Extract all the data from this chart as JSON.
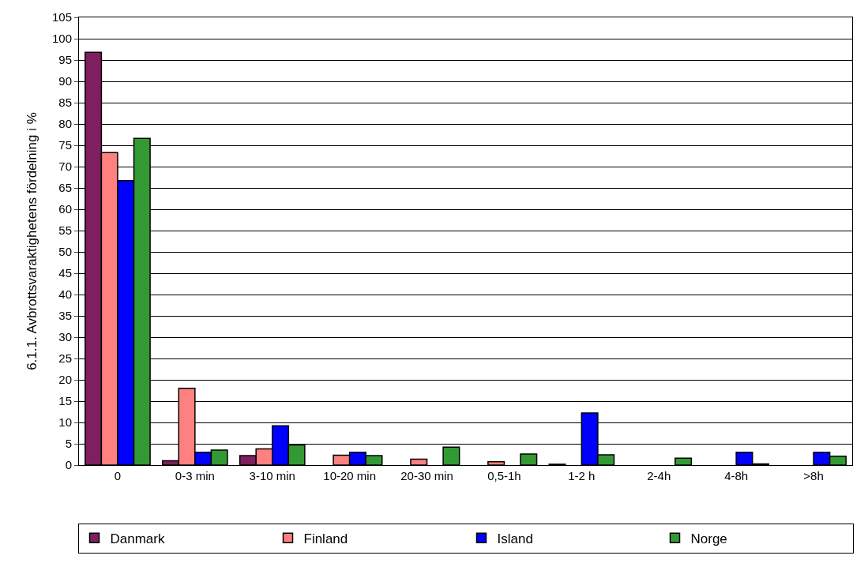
{
  "chart_data": {
    "type": "bar",
    "ylabel": "6.1.1. Avbrottsvaraktighetens fördelning i %",
    "categories": [
      "0",
      "0-3 min",
      "3-10 min",
      "10-20 min",
      "20-30 min",
      "0,5-1h",
      "1-2 h",
      "2-4h",
      "4-8h",
      ">8h"
    ],
    "series": [
      {
        "name": "Danmark",
        "color": "#7f1f5f",
        "values": [
          96.8,
          1.0,
          2.2,
          0,
          0,
          0,
          0.2,
          0,
          0,
          0
        ]
      },
      {
        "name": "Finland",
        "color": "#ff8080",
        "values": [
          73.3,
          18.0,
          3.8,
          2.3,
          1.4,
          0.8,
          0,
          0,
          0,
          0
        ]
      },
      {
        "name": "Island",
        "color": "#0000ff",
        "values": [
          66.7,
          3.0,
          9.2,
          3.0,
          0,
          0,
          12.2,
          0,
          3.0,
          3.0
        ]
      },
      {
        "name": "Norge",
        "color": "#339933",
        "values": [
          76.6,
          3.5,
          4.7,
          2.2,
          4.2,
          2.6,
          2.4,
          1.6,
          0.3,
          2.1
        ]
      }
    ],
    "ylim": [
      0,
      105
    ],
    "yticks": [
      0,
      5,
      10,
      15,
      20,
      25,
      30,
      35,
      40,
      45,
      50,
      55,
      60,
      65,
      70,
      75,
      80,
      85,
      90,
      95,
      100,
      105
    ],
    "grid": "y",
    "legend": "bottom"
  }
}
